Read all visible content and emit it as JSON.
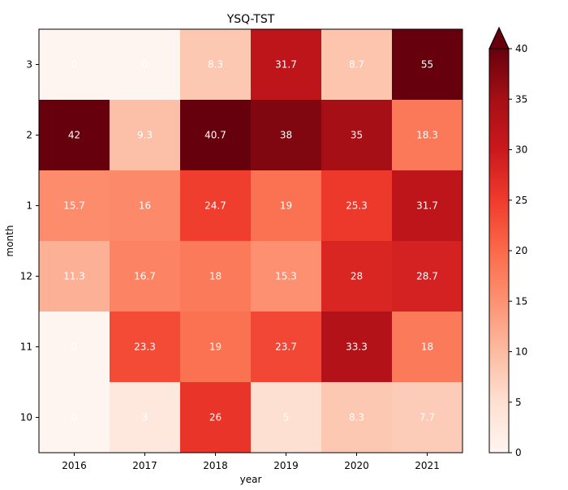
{
  "chart_data": {
    "type": "heatmap",
    "title": "YSQ-TST",
    "xlabel": "year",
    "ylabel": "month",
    "x_categories": [
      "2016",
      "2017",
      "2018",
      "2019",
      "2020",
      "2021"
    ],
    "y_categories": [
      "3",
      "2",
      "1",
      "12",
      "11",
      "10"
    ],
    "values": [
      [
        0,
        0,
        8.3,
        31.7,
        8.7,
        55
      ],
      [
        42,
        9.3,
        40.7,
        38,
        35,
        18.3
      ],
      [
        15.7,
        16,
        24.7,
        19,
        25.3,
        31.7
      ],
      [
        11.3,
        16.7,
        18,
        15.3,
        28,
        28.7
      ],
      [
        0,
        23.3,
        19,
        23.7,
        33.3,
        18
      ],
      [
        0,
        3,
        26,
        5,
        8.3,
        7.7
      ]
    ],
    "cell_labels": [
      [
        "0",
        "0",
        "8.3",
        "31.7",
        "8.7",
        "55"
      ],
      [
        "42",
        "9.3",
        "40.7",
        "38",
        "35",
        "18.3"
      ],
      [
        "15.7",
        "16",
        "24.7",
        "19",
        "25.3",
        "31.7"
      ],
      [
        "11.3",
        "16.7",
        "18",
        "15.3",
        "28",
        "28.7"
      ],
      [
        "0",
        "23.3",
        "19",
        "23.7",
        "33.3",
        "18"
      ],
      [
        "0",
        "3",
        "26",
        "5",
        "8.3",
        "7.7"
      ]
    ],
    "colormap": "Reds",
    "vmin": 0,
    "vmax": 40,
    "colorbar": {
      "ticks": [
        0,
        5,
        10,
        15,
        20,
        25,
        30,
        35,
        40
      ],
      "extend": "max",
      "position": "right"
    },
    "label_color": "#ffffff",
    "grid": false
  }
}
